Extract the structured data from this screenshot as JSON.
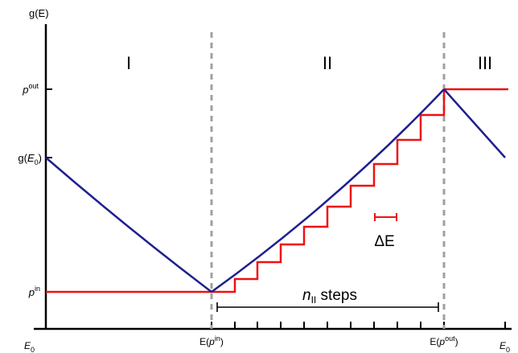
{
  "axes": {
    "y_label": "g(E)",
    "y_ticks": {
      "p_out": {
        "base": "p",
        "sup": "out"
      },
      "g_e0": {
        "pre": "g(",
        "italic": "E",
        "sub": "0",
        "post": ")"
      },
      "p_in": {
        "base": "p",
        "sup": "in"
      }
    },
    "x_ticks": {
      "e0_left": {
        "italic": "E",
        "sub": "0"
      },
      "e_p_in": {
        "pre": "E(",
        "italic": "p",
        "sup": "in",
        "post": ")"
      },
      "e_p_out": {
        "pre": "E(",
        "italic": "p",
        "sup": "out",
        "post": ")"
      },
      "e0_right": {
        "italic": "E",
        "sub": "0"
      }
    }
  },
  "regions": {
    "one": "I",
    "two": "II",
    "three": "III"
  },
  "annotations": {
    "delta_e": "ΔE",
    "steps": {
      "italic": "n",
      "sub": "II",
      "post": " steps"
    }
  },
  "colors": {
    "navy_curve": "#1f1f8f",
    "red_staircase": "#ee1111",
    "divider": "#a0a0a0",
    "axis": "#000000"
  }
}
